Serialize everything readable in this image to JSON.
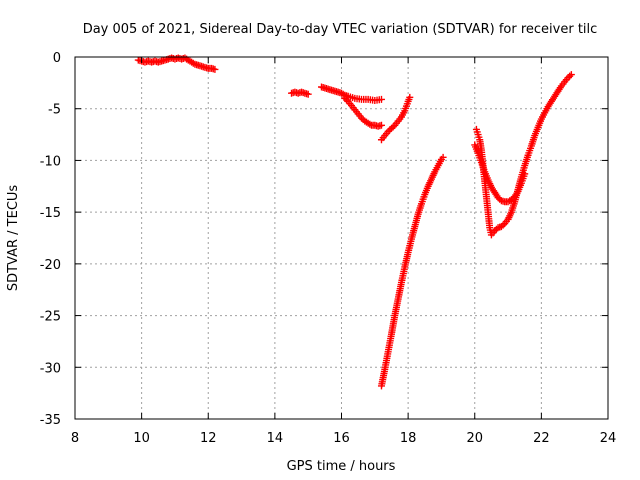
{
  "chart_data": {
    "type": "scatter",
    "title": "Day 005 of 2021, Sidereal Day-to-day VTEC variation (SDTVAR) for receiver tilc",
    "xlabel": "GPS time / hours",
    "ylabel": "SDTVAR / TECUs",
    "xlim": [
      8,
      24
    ],
    "ylim": [
      -35,
      0
    ],
    "xticks": [
      8,
      10,
      12,
      14,
      16,
      18,
      20,
      22,
      24
    ],
    "yticks": [
      0,
      -5,
      -10,
      -15,
      -20,
      -25,
      -30,
      -35
    ],
    "grid": true,
    "marker": "plus",
    "color": "#ff0000",
    "series": [
      {
        "segments": [
          [
            [
              9.9,
              -0.3
            ],
            [
              10.0,
              -0.4
            ],
            [
              10.1,
              -0.5
            ],
            [
              10.2,
              -0.4
            ],
            [
              10.3,
              -0.5
            ],
            [
              10.4,
              -0.4
            ],
            [
              10.5,
              -0.5
            ],
            [
              10.6,
              -0.4
            ],
            [
              10.7,
              -0.3
            ],
            [
              10.8,
              -0.2
            ],
            [
              10.9,
              -0.1
            ],
            [
              11.0,
              -0.2
            ],
            [
              11.1,
              -0.1
            ],
            [
              11.2,
              -0.2
            ],
            [
              11.3,
              -0.1
            ],
            [
              11.4,
              -0.3
            ],
            [
              11.5,
              -0.5
            ],
            [
              11.6,
              -0.7
            ],
            [
              11.7,
              -0.8
            ],
            [
              11.8,
              -0.9
            ],
            [
              11.9,
              -1.0
            ],
            [
              12.0,
              -1.1
            ],
            [
              12.1,
              -1.1
            ],
            [
              12.2,
              -1.2
            ]
          ],
          [
            [
              14.5,
              -3.5
            ],
            [
              14.6,
              -3.4
            ],
            [
              14.7,
              -3.5
            ],
            [
              14.8,
              -3.4
            ],
            [
              14.9,
              -3.5
            ],
            [
              15.0,
              -3.6
            ]
          ],
          [
            [
              15.4,
              -2.9
            ],
            [
              15.5,
              -3.0
            ],
            [
              15.6,
              -3.1
            ],
            [
              15.7,
              -3.2
            ],
            [
              15.8,
              -3.3
            ],
            [
              15.9,
              -3.4
            ],
            [
              16.0,
              -3.5
            ],
            [
              16.1,
              -3.7
            ],
            [
              16.2,
              -3.8
            ],
            [
              16.4,
              -4.0
            ],
            [
              16.6,
              -4.1
            ],
            [
              16.8,
              -4.1
            ],
            [
              17.0,
              -4.2
            ],
            [
              17.2,
              -4.1
            ]
          ],
          [
            [
              16.1,
              -4.0
            ],
            [
              16.2,
              -4.3
            ],
            [
              16.3,
              -4.7
            ],
            [
              16.4,
              -5.1
            ],
            [
              16.5,
              -5.5
            ],
            [
              16.6,
              -5.9
            ],
            [
              16.7,
              -6.2
            ],
            [
              16.8,
              -6.4
            ],
            [
              16.9,
              -6.6
            ],
            [
              17.0,
              -6.6
            ],
            [
              17.1,
              -6.7
            ],
            [
              17.2,
              -6.6
            ]
          ],
          [
            [
              17.2,
              -8.0
            ],
            [
              17.3,
              -7.6
            ],
            [
              17.4,
              -7.2
            ],
            [
              17.5,
              -6.9
            ],
            [
              17.6,
              -6.6
            ],
            [
              17.7,
              -6.2
            ],
            [
              17.8,
              -5.8
            ],
            [
              17.9,
              -5.2
            ],
            [
              18.0,
              -4.3
            ],
            [
              18.05,
              -3.9
            ]
          ],
          [
            [
              17.2,
              -31.8
            ],
            [
              17.3,
              -30.2
            ],
            [
              17.4,
              -28.5
            ],
            [
              17.5,
              -26.8
            ],
            [
              17.6,
              -25.0
            ],
            [
              17.7,
              -23.4
            ],
            [
              17.8,
              -21.8
            ],
            [
              17.9,
              -20.3
            ],
            [
              18.0,
              -18.9
            ],
            [
              18.1,
              -17.6
            ],
            [
              18.2,
              -16.4
            ],
            [
              18.3,
              -15.2
            ],
            [
              18.4,
              -14.2
            ],
            [
              18.5,
              -13.3
            ],
            [
              18.6,
              -12.5
            ],
            [
              18.7,
              -11.8
            ],
            [
              18.8,
              -11.1
            ],
            [
              18.9,
              -10.5
            ],
            [
              19.0,
              -9.9
            ],
            [
              19.05,
              -9.7
            ]
          ],
          [
            [
              20.05,
              -7.0
            ],
            [
              20.1,
              -7.5
            ],
            [
              20.15,
              -8.0
            ],
            [
              20.2,
              -9.0
            ],
            [
              20.25,
              -10.5
            ],
            [
              20.3,
              -12.0
            ],
            [
              20.35,
              -13.5
            ],
            [
              20.4,
              -15.0
            ],
            [
              20.45,
              -16.5
            ],
            [
              20.5,
              -17.2
            ],
            [
              20.6,
              -16.8
            ],
            [
              20.7,
              -16.5
            ],
            [
              20.8,
              -16.4
            ],
            [
              20.9,
              -16.1
            ],
            [
              21.0,
              -15.7
            ],
            [
              21.1,
              -15.0
            ],
            [
              21.2,
              -14.0
            ],
            [
              21.3,
              -12.8
            ],
            [
              21.4,
              -11.6
            ],
            [
              21.5,
              -10.5
            ],
            [
              21.6,
              -9.5
            ],
            [
              21.7,
              -8.6
            ],
            [
              21.8,
              -7.6
            ],
            [
              21.9,
              -6.8
            ],
            [
              22.0,
              -6.0
            ],
            [
              22.1,
              -5.4
            ],
            [
              22.2,
              -4.8
            ],
            [
              22.3,
              -4.3
            ],
            [
              22.4,
              -3.8
            ],
            [
              22.5,
              -3.3
            ],
            [
              22.6,
              -2.8
            ],
            [
              22.7,
              -2.4
            ],
            [
              22.8,
              -2.0
            ],
            [
              22.9,
              -1.7
            ]
          ],
          [
            [
              20.0,
              -8.5
            ],
            [
              20.1,
              -9.3
            ],
            [
              20.2,
              -10.2
            ],
            [
              20.3,
              -11.1
            ],
            [
              20.4,
              -11.9
            ],
            [
              20.5,
              -12.6
            ],
            [
              20.6,
              -13.1
            ],
            [
              20.7,
              -13.6
            ],
            [
              20.8,
              -13.9
            ],
            [
              20.9,
              -14.0
            ],
            [
              21.0,
              -14.0
            ],
            [
              21.1,
              -13.8
            ],
            [
              21.2,
              -13.5
            ],
            [
              21.3,
              -13.0
            ],
            [
              21.4,
              -12.2
            ],
            [
              21.5,
              -11.3
            ]
          ]
        ]
      }
    ]
  }
}
